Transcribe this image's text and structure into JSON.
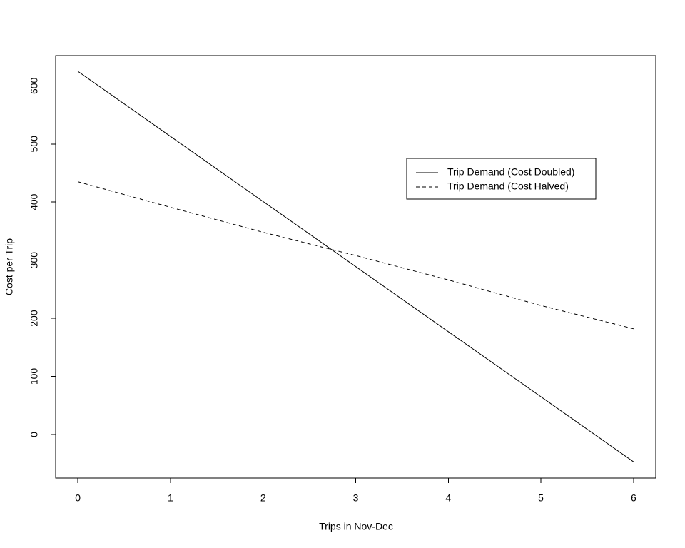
{
  "chart_data": {
    "type": "line",
    "xlabel": "Trips in Nov-Dec",
    "ylabel": "Cost per Trip",
    "x": [
      0,
      1,
      2,
      3,
      4,
      5,
      6
    ],
    "series": [
      {
        "name": "Trip Demand (Cost Doubled)",
        "color": "#000000",
        "linestyle": "solid",
        "values": [
          625,
          513,
          401,
          289,
          177,
          65,
          -47
        ]
      },
      {
        "name": "Trip Demand (Cost Halved)",
        "color": "#000000",
        "linestyle": "dashed",
        "values": [
          435,
          391,
          348,
          308,
          266,
          222,
          182
        ]
      }
    ],
    "xlim": [
      -0.24,
      6.24
    ],
    "ylim": [
      -75,
      652
    ],
    "xticks": [
      0,
      1,
      2,
      3,
      4,
      5,
      6
    ],
    "yticks": [
      0,
      100,
      200,
      300,
      400,
      500,
      600
    ],
    "grid": false
  }
}
